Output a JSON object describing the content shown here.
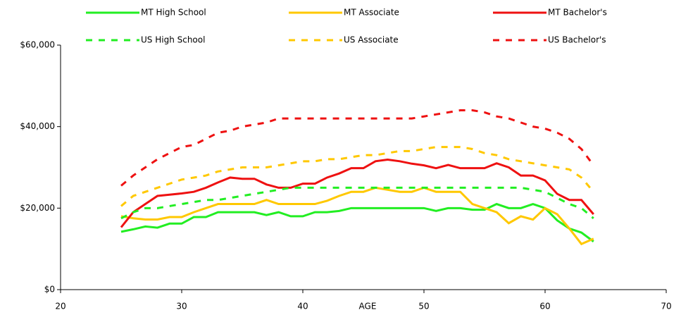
{
  "chart_data": {
    "type": "line",
    "xlabel": "AGE",
    "x": [
      25,
      26,
      27,
      28,
      29,
      30,
      31,
      32,
      33,
      34,
      35,
      36,
      37,
      38,
      39,
      40,
      41,
      42,
      43,
      44,
      45,
      46,
      47,
      48,
      49,
      50,
      51,
      52,
      53,
      54,
      55,
      56,
      57,
      58,
      59,
      60,
      61,
      62,
      63,
      64
    ],
    "xlim": [
      20,
      70
    ],
    "xticks": [
      20,
      30,
      40,
      50,
      60,
      70
    ],
    "ylim": [
      0,
      60000
    ],
    "yticks": [
      {
        "value": 0,
        "label": "$0"
      },
      {
        "value": 20000,
        "label": "$20,000"
      },
      {
        "value": 40000,
        "label": "$40,000"
      },
      {
        "value": 60000,
        "label": "$60,000"
      }
    ],
    "series": [
      {
        "name": "MT High School",
        "color": "#22ee22",
        "dashed": false,
        "values": [
          14200,
          14800,
          15500,
          15200,
          16200,
          16200,
          17800,
          17800,
          19000,
          19000,
          19000,
          19000,
          18300,
          19000,
          18000,
          18000,
          19000,
          19000,
          19300,
          20000,
          20000,
          20000,
          20000,
          20000,
          20000,
          20000,
          19300,
          20000,
          20000,
          19600,
          19600,
          21000,
          20000,
          20000,
          21000,
          20000,
          17000,
          15000,
          14000,
          11800
        ]
      },
      {
        "name": "MT Associate",
        "color": "#ffc800",
        "dashed": false,
        "values": [
          18000,
          17500,
          17200,
          17200,
          17800,
          17800,
          19000,
          20000,
          21000,
          21000,
          21000,
          21000,
          22000,
          21000,
          21000,
          21000,
          21000,
          21800,
          23000,
          24000,
          24000,
          25000,
          24500,
          24000,
          24000,
          25000,
          24000,
          24000,
          24000,
          21000,
          20000,
          19000,
          16300,
          18000,
          17200,
          20000,
          18500,
          15000,
          11200,
          12500
        ]
      },
      {
        "name": "MT Bachelor's",
        "color": "#ee1111",
        "dashed": false,
        "values": [
          15300,
          19000,
          21000,
          23000,
          23300,
          23600,
          24000,
          25000,
          26300,
          27500,
          27200,
          27200,
          25800,
          25000,
          25000,
          26000,
          26000,
          27500,
          28500,
          29800,
          29800,
          31500,
          31900,
          31500,
          30900,
          30500,
          29800,
          30600,
          29800,
          29800,
          29800,
          31000,
          30000,
          28000,
          28000,
          26800,
          23500,
          22000,
          22000,
          18500
        ]
      },
      {
        "name": "US High School",
        "color": "#22ee22",
        "dashed": true,
        "values": [
          17500,
          19000,
          20000,
          20000,
          20500,
          21000,
          21500,
          22000,
          22000,
          22500,
          23000,
          23500,
          24000,
          24500,
          25000,
          25000,
          25000,
          25000,
          25000,
          25000,
          25000,
          25000,
          25000,
          25000,
          25000,
          25000,
          25000,
          25000,
          25000,
          25000,
          25000,
          25000,
          25000,
          25000,
          24500,
          24000,
          22500,
          21000,
          20000,
          17500
        ]
      },
      {
        "name": "US Associate",
        "color": "#ffc800",
        "dashed": true,
        "values": [
          20500,
          23000,
          24000,
          25000,
          26000,
          27000,
          27500,
          28000,
          29000,
          29500,
          30000,
          30000,
          30000,
          30500,
          31000,
          31500,
          31500,
          32000,
          32000,
          32500,
          33000,
          33000,
          33500,
          34000,
          34000,
          34500,
          35000,
          35000,
          35000,
          34500,
          33500,
          33000,
          32000,
          31500,
          31000,
          30500,
          30000,
          29500,
          27500,
          24000
        ]
      },
      {
        "name": "US Bachelor's",
        "color": "#ee1111",
        "dashed": true,
        "values": [
          25500,
          28000,
          30000,
          32000,
          33500,
          35000,
          35500,
          37000,
          38500,
          39000,
          40000,
          40500,
          41000,
          42000,
          42000,
          42000,
          42000,
          42000,
          42000,
          42000,
          42000,
          42000,
          42000,
          42000,
          42000,
          42500,
          43000,
          43500,
          44000,
          44000,
          43500,
          42500,
          42000,
          41000,
          40000,
          39500,
          38500,
          37000,
          34500,
          30500
        ]
      }
    ]
  }
}
